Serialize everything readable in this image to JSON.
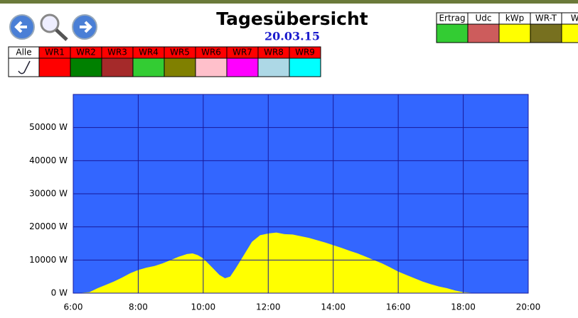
{
  "header": {
    "title": "Tagesübersicht",
    "date": "20.03.15"
  },
  "inverters": [
    {
      "label": "Alle"
    },
    {
      "label": "WR1",
      "color": "#ff0000"
    },
    {
      "label": "WR2",
      "color": "#008000"
    },
    {
      "label": "WR3",
      "color": "#a52a2a"
    },
    {
      "label": "WR4",
      "color": "#33cc33"
    },
    {
      "label": "WR5",
      "color": "#808000"
    },
    {
      "label": "WR6",
      "color": "#ffc0cb"
    },
    {
      "label": "WR7",
      "color": "#ff00ff"
    },
    {
      "label": "WR8",
      "color": "#add8e6"
    },
    {
      "label": "WR9",
      "color": "#00ffff"
    }
  ],
  "legend_table": [
    {
      "label": "Ertrag",
      "color": "#33cc33"
    },
    {
      "label": "Udc",
      "color": "#cd5c5c"
    },
    {
      "label": "kWp",
      "color": "#ffff00"
    },
    {
      "label": "WR-T",
      "color": "#77701f"
    },
    {
      "label": "We",
      "color": "#ffff00"
    }
  ],
  "chart_data": {
    "type": "area",
    "color": "#ffff00",
    "background": "#3366ff",
    "grid": true,
    "grid_color": "#1a1a99",
    "x": [
      6.25,
      6.5,
      6.75,
      7.0,
      7.25,
      7.5,
      7.75,
      8.0,
      8.25,
      8.5,
      8.75,
      9.0,
      9.25,
      9.5,
      9.67,
      9.83,
      10.0,
      10.25,
      10.5,
      10.67,
      10.83,
      11.0,
      11.25,
      11.5,
      11.75,
      12.0,
      12.25,
      12.5,
      12.75,
      13.0,
      13.25,
      13.5,
      13.75,
      14.0,
      14.25,
      14.5,
      14.75,
      15.0,
      15.25,
      15.5,
      15.75,
      16.0,
      16.25,
      16.5,
      16.75,
      17.0,
      17.25,
      17.5,
      17.75,
      18.0,
      18.25,
      18.5
    ],
    "values": [
      100,
      300,
      1500,
      2500,
      3500,
      4700,
      6000,
      7000,
      7700,
      8200,
      9000,
      10000,
      11000,
      11800,
      12000,
      11500,
      10500,
      8000,
      5500,
      4500,
      5000,
      7500,
      11500,
      15500,
      17500,
      18000,
      18300,
      17800,
      17700,
      17200,
      16700,
      16000,
      15300,
      14500,
      13700,
      12800,
      12000,
      11000,
      10000,
      9000,
      7800,
      6500,
      5500,
      4500,
      3500,
      2700,
      2000,
      1500,
      800,
      300,
      100,
      0
    ],
    "xlim": [
      6,
      20
    ],
    "xticks": [
      {
        "value": 6,
        "label": "6:00"
      },
      {
        "value": 8,
        "label": "8:00"
      },
      {
        "value": 10,
        "label": "10:00"
      },
      {
        "value": 12,
        "label": "12:00"
      },
      {
        "value": 14,
        "label": "14:00"
      },
      {
        "value": 16,
        "label": "16:00"
      },
      {
        "value": 18,
        "label": "18:00"
      },
      {
        "value": 20,
        "label": "20:00"
      }
    ],
    "ylim": [
      0,
      60000
    ],
    "yticks": [
      {
        "value": 0,
        "label": "0 W"
      },
      {
        "value": 10000,
        "label": "10000 W"
      },
      {
        "value": 20000,
        "label": "20000 W"
      },
      {
        "value": 30000,
        "label": "30000 W"
      },
      {
        "value": 40000,
        "label": "40000 W"
      },
      {
        "value": 50000,
        "label": "50000 W"
      }
    ]
  }
}
